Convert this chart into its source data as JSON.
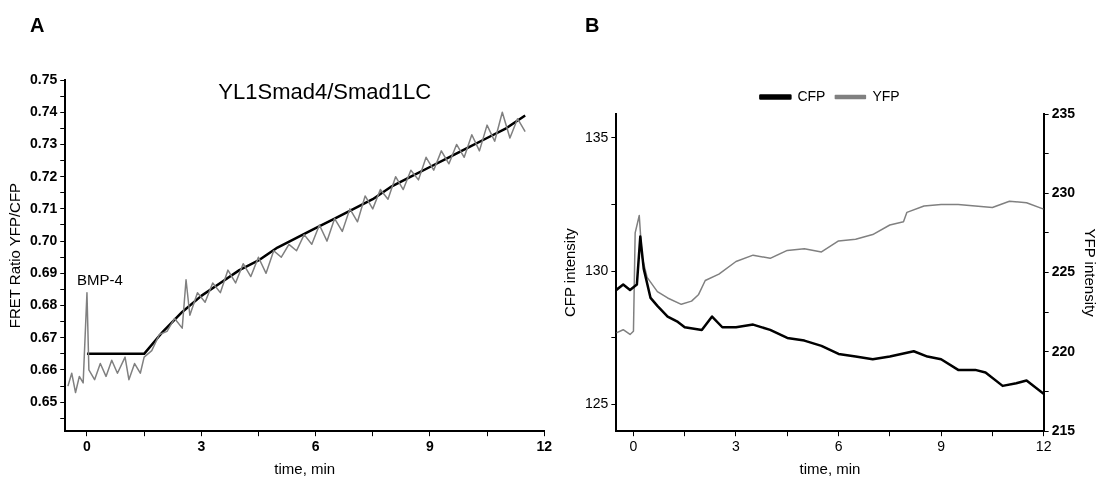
{
  "chart_data": [
    {
      "type": "line",
      "title": "YL1Smad4/Smad1LC",
      "xlabel": "time, min",
      "ylabel": "FRET Ratio YFP/CFP",
      "annotations": [
        "A",
        {
          "text": "BMP-4",
          "x": 0,
          "y": 0.684
        }
      ],
      "series": [
        {
          "color": "#808080",
          "x": [
            -0.5,
            -0.4,
            -0.3,
            -0.2,
            -0.1,
            0,
            0.05,
            0.2,
            0.35,
            0.5,
            0.65,
            0.8,
            1.0,
            1.1,
            1.25,
            1.4,
            1.5,
            1.7,
            1.9,
            2.1,
            2.3,
            2.5,
            2.6,
            2.7,
            2.9,
            3.1,
            3.3,
            3.5,
            3.7,
            3.9,
            4.1,
            4.3,
            4.5,
            4.7,
            4.9,
            5.1,
            5.3,
            5.5,
            5.7,
            5.9,
            6.1,
            6.3,
            6.5,
            6.7,
            6.9,
            7.1,
            7.3,
            7.5,
            7.7,
            7.9,
            8.1,
            8.3,
            8.5,
            8.7,
            8.9,
            9.1,
            9.3,
            9.5,
            9.7,
            9.9,
            10.1,
            10.3,
            10.5,
            10.7,
            10.9,
            11.1,
            11.3,
            11.5
          ],
          "values": [
            0.655,
            0.659,
            0.653,
            0.658,
            0.656,
            0.684,
            0.66,
            0.657,
            0.662,
            0.658,
            0.663,
            0.659,
            0.664,
            0.657,
            0.662,
            0.659,
            0.664,
            0.666,
            0.671,
            0.672,
            0.676,
            0.673,
            0.688,
            0.677,
            0.684,
            0.681,
            0.687,
            0.684,
            0.691,
            0.687,
            0.693,
            0.689,
            0.695,
            0.69,
            0.697,
            0.695,
            0.699,
            0.697,
            0.702,
            0.699,
            0.705,
            0.7,
            0.707,
            0.703,
            0.71,
            0.706,
            0.714,
            0.71,
            0.716,
            0.713,
            0.72,
            0.716,
            0.722,
            0.719,
            0.726,
            0.722,
            0.728,
            0.724,
            0.73,
            0.726,
            0.733,
            0.728,
            0.736,
            0.731,
            0.74,
            0.732,
            0.738,
            0.734
          ]
        },
        {
          "color": "#000000",
          "x": [
            0,
            1.5,
            2,
            2.5,
            3,
            3.5,
            4,
            4.5,
            5,
            5.5,
            6,
            6.5,
            7,
            7.5,
            8,
            8.5,
            9,
            9.5,
            10,
            10.5,
            11,
            11.5
          ],
          "values": [
            0.665,
            0.665,
            0.672,
            0.678,
            0.683,
            0.687,
            0.691,
            0.694,
            0.698,
            0.701,
            0.704,
            0.707,
            0.71,
            0.713,
            0.717,
            0.72,
            0.723,
            0.726,
            0.729,
            0.732,
            0.735,
            0.739
          ]
        }
      ],
      "xlim": [
        -0.57,
        12
      ],
      "xticks": [
        0,
        {
          "value": 1.5,
          "label": null
        },
        3,
        {
          "value": 4.5,
          "label": null
        },
        6,
        {
          "value": 7.5,
          "label": null
        },
        9,
        {
          "value": 10.5,
          "label": null
        },
        12
      ],
      "ylim": [
        0.641,
        0.75
      ],
      "yticks": [
        {
          "value": 0.645,
          "label": null
        },
        0.65,
        {
          "value": 0.655,
          "label": null
        },
        0.66,
        {
          "value": 0.665,
          "label": null
        },
        0.67,
        {
          "value": 0.675,
          "label": null
        },
        0.68,
        {
          "value": 0.685,
          "label": null
        },
        0.69,
        {
          "value": 0.695,
          "label": null
        },
        {
          "value": 0.7,
          "label": "0.70"
        },
        {
          "value": 0.705,
          "label": null
        },
        0.71,
        {
          "value": 0.715,
          "label": null
        },
        0.72,
        {
          "value": 0.725,
          "label": null
        },
        0.73,
        {
          "value": 0.735,
          "label": null
        },
        0.74,
        {
          "value": 0.745,
          "label": null
        },
        0.75
      ],
      "grid": false,
      "marker": "none"
    },
    {
      "type": "line",
      "xlabel": "time, min",
      "ylabel": "CFP intensity",
      "y2label": "YFP intensity",
      "annotations": [
        "B"
      ],
      "legend": "top",
      "series": [
        {
          "name": "CFP",
          "color": "#000000",
          "x": [
            -0.5,
            -0.3,
            -0.1,
            0.1,
            0.2,
            0.3,
            0.5,
            0.7,
            1.0,
            1.3,
            1.5,
            2.0,
            2.3,
            2.6,
            3.0,
            3.5,
            4.0,
            4.5,
            5.0,
            5.5,
            6.0,
            6.5,
            7.0,
            7.5,
            8.2,
            8.6,
            9.0,
            9.5,
            10.0,
            10.3,
            10.8,
            11.2,
            11.5,
            12.0
          ],
          "values": [
            129.3,
            129.5,
            129.3,
            129.5,
            131.3,
            130.1,
            129.0,
            128.7,
            128.3,
            128.1,
            127.9,
            127.8,
            128.3,
            127.9,
            127.9,
            128.0,
            127.8,
            127.5,
            127.4,
            127.2,
            126.9,
            126.8,
            126.7,
            126.8,
            127.0,
            126.8,
            126.7,
            126.3,
            126.3,
            126.2,
            125.7,
            125.8,
            125.9,
            125.4
          ]
        },
        {
          "name": "YFP",
          "color": "#808080",
          "axis": "y2",
          "x": [
            -0.5,
            -0.3,
            -0.1,
            0.0,
            0.05,
            0.17,
            0.25,
            0.4,
            0.7,
            1.0,
            1.4,
            1.7,
            1.9,
            2.1,
            2.5,
            3.0,
            3.5,
            4.0,
            4.5,
            5.0,
            5.5,
            6.0,
            6.5,
            7.0,
            7.5,
            7.9,
            8.0,
            8.5,
            9.0,
            9.5,
            10.0,
            10.5,
            11.0,
            11.5,
            12.0
          ],
          "values": [
            221.2,
            221.4,
            221.1,
            221.3,
            227.5,
            228.6,
            226.0,
            224.7,
            223.8,
            223.4,
            223.0,
            223.2,
            223.6,
            224.5,
            224.9,
            225.7,
            226.1,
            225.9,
            226.4,
            226.5,
            226.3,
            227.0,
            227.1,
            227.4,
            228.0,
            228.2,
            228.8,
            229.2,
            229.3,
            229.3,
            229.2,
            229.1,
            229.5,
            229.4,
            229.0
          ]
        }
      ],
      "xlim": [
        -0.5,
        12
      ],
      "xticks": [
        0,
        {
          "value": 1.5,
          "label": null
        },
        3,
        {
          "value": 4.5,
          "label": null
        },
        6,
        {
          "value": 7.5,
          "label": null
        },
        9,
        {
          "value": 10.5,
          "label": null
        },
        12
      ],
      "ylim": [
        124,
        135.9
      ],
      "yticks": [
        125,
        {
          "value": 127.5,
          "label": null
        },
        130,
        {
          "value": 132.5,
          "label": null
        },
        135
      ],
      "y2lim": [
        215,
        235
      ],
      "y2ticks": [
        215,
        {
          "value": 217.5,
          "label": null
        },
        220,
        {
          "value": 222.5,
          "label": null
        },
        225,
        {
          "value": 227.5,
          "label": null
        },
        230,
        {
          "value": 232.5,
          "label": null
        },
        235
      ],
      "grid": false,
      "marker": "none"
    }
  ]
}
